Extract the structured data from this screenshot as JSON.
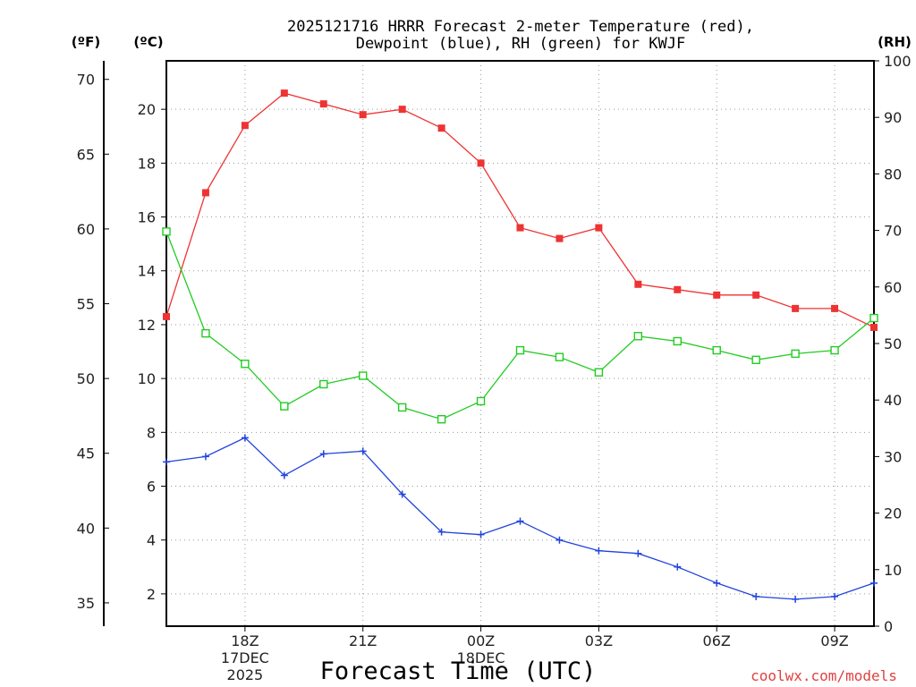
{
  "chart_data": {
    "type": "line",
    "title_line1": "2025121716 HRRR Forecast 2-meter Temperature (red),",
    "title_line2": "Dewpoint (blue), RH (green) for KWJF",
    "xlabel": "Forecast Time (UTC)",
    "credit": "coolwx.com/models",
    "units": {
      "fahrenheit": "(ºF)",
      "celsius": "(ºC)",
      "rh": "(RH)"
    },
    "x": [
      16,
      17,
      18,
      19,
      20,
      21,
      22,
      23,
      24,
      25,
      26,
      27,
      28,
      29,
      30,
      31,
      32,
      33,
      34
    ],
    "xlim": [
      16,
      34
    ],
    "x_ticks": [
      {
        "x": 18,
        "lines": [
          "18Z",
          "17DEC",
          "2025"
        ]
      },
      {
        "x": 21,
        "lines": [
          "21Z"
        ]
      },
      {
        "x": 24,
        "lines": [
          "00Z",
          "18DEC"
        ]
      },
      {
        "x": 27,
        "lines": [
          "03Z"
        ]
      },
      {
        "x": 30,
        "lines": [
          "06Z"
        ]
      },
      {
        "x": 33,
        "lines": [
          "09Z"
        ]
      }
    ],
    "celsius_axis": {
      "ylim": [
        0.8,
        21.8
      ],
      "ticks": [
        2,
        4,
        6,
        8,
        10,
        12,
        14,
        16,
        18,
        20
      ]
    },
    "fahrenheit_axis": {
      "ticks": [
        35,
        40,
        45,
        50,
        55,
        60,
        65,
        70
      ]
    },
    "rh_axis": {
      "ylim": [
        0,
        100
      ],
      "ticks": [
        0,
        10,
        20,
        30,
        40,
        50,
        60,
        70,
        80,
        90,
        100
      ]
    },
    "series": [
      {
        "name": "Temperature",
        "axis": "celsius",
        "color": "#ee3333",
        "marker": "filled-square",
        "values": [
          12.3,
          16.9,
          19.4,
          20.6,
          20.2,
          19.8,
          20.0,
          19.3,
          18.0,
          15.6,
          15.2,
          15.6,
          13.5,
          13.3,
          13.1,
          13.1,
          12.6,
          12.6,
          11.9
        ]
      },
      {
        "name": "Dewpoint",
        "axis": "celsius",
        "color": "#2244dd",
        "marker": "plus",
        "values": [
          6.9,
          7.1,
          7.8,
          6.4,
          7.2,
          7.3,
          5.7,
          4.3,
          4.2,
          4.7,
          4.0,
          3.6,
          3.5,
          3.0,
          2.4,
          1.9,
          1.8,
          1.9,
          2.4
        ]
      },
      {
        "name": "RH",
        "axis": "rh",
        "color": "#22cc22",
        "marker": "open-square",
        "values": [
          69.8,
          51.8,
          46.4,
          38.9,
          42.8,
          44.3,
          38.7,
          36.6,
          39.8,
          48.8,
          47.6,
          44.9,
          51.3,
          50.4,
          48.8,
          47.1,
          48.2,
          48.8,
          54.5
        ]
      }
    ]
  }
}
